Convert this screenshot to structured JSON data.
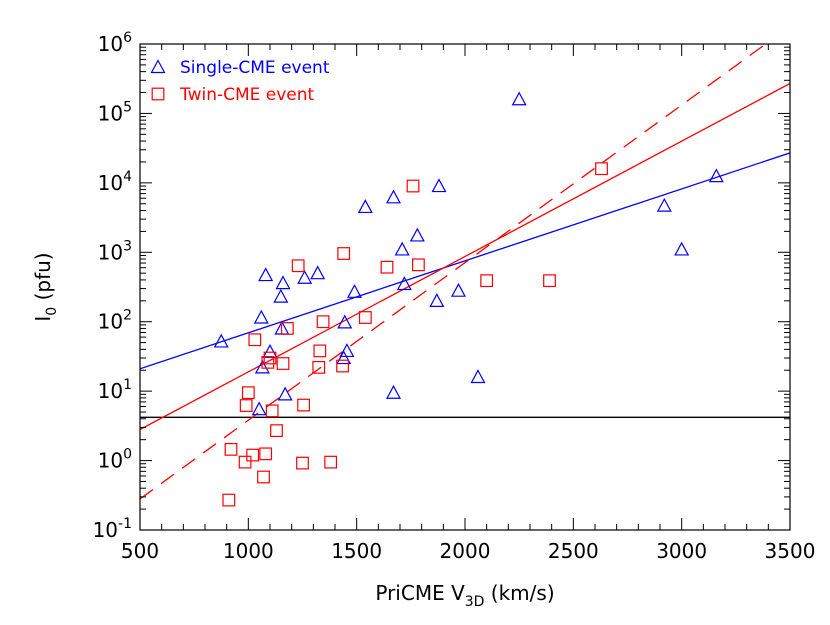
{
  "chart_data": {
    "type": "scatter",
    "xlabel": {
      "main": "PriCME V",
      "sub": "3D",
      "unit": " (km/s)"
    },
    "ylabel": {
      "main": "I",
      "sub": "0",
      "unit": " (pfu)"
    },
    "xlim": [
      500,
      3500
    ],
    "ylim": [
      0.1,
      1000000
    ],
    "yscale": "log",
    "x_ticks": [
      500,
      1000,
      1500,
      2000,
      2500,
      3000,
      3500
    ],
    "y_ticks": [
      {
        "value": 0.1,
        "base": "10",
        "exp": "-1"
      },
      {
        "value": 1,
        "base": "10",
        "exp": "0"
      },
      {
        "value": 10,
        "base": "10",
        "exp": "1"
      },
      {
        "value": 100,
        "base": "10",
        "exp": "2"
      },
      {
        "value": 1000,
        "base": "10",
        "exp": "3"
      },
      {
        "value": 10000,
        "base": "10",
        "exp": "4"
      },
      {
        "value": 100000,
        "base": "10",
        "exp": "5"
      },
      {
        "value": 1000000,
        "base": "10",
        "exp": "6"
      }
    ],
    "grid": false,
    "legend_position": "top-left",
    "series": [
      {
        "name": "Single-CME event",
        "marker": "triangle",
        "color": "#0000ff",
        "points": [
          [
            875,
            52
          ],
          [
            1050,
            5.5
          ],
          [
            1060,
            115
          ],
          [
            1065,
            22
          ],
          [
            1080,
            470
          ],
          [
            1100,
            37
          ],
          [
            1150,
            230
          ],
          [
            1155,
            80
          ],
          [
            1160,
            360
          ],
          [
            1170,
            9
          ],
          [
            1260,
            430
          ],
          [
            1320,
            500
          ],
          [
            1440,
            30
          ],
          [
            1445,
            98
          ],
          [
            1455,
            38
          ],
          [
            1490,
            270
          ],
          [
            1540,
            4500
          ],
          [
            1670,
            9.5
          ],
          [
            1670,
            6200
          ],
          [
            1710,
            1100
          ],
          [
            1720,
            350
          ],
          [
            1780,
            1750
          ],
          [
            1870,
            200
          ],
          [
            1880,
            9000
          ],
          [
            1970,
            280
          ],
          [
            2060,
            16
          ],
          [
            2250,
            160000
          ],
          [
            2920,
            4700
          ],
          [
            3000,
            1100
          ],
          [
            3160,
            12500
          ]
        ]
      },
      {
        "name": "Twin-CME event",
        "marker": "square",
        "color": "#ff0000",
        "points": [
          [
            910,
            0.27
          ],
          [
            920,
            1.45
          ],
          [
            985,
            0.95
          ],
          [
            990,
            6.2
          ],
          [
            1000,
            9.5
          ],
          [
            1020,
            1.2
          ],
          [
            1030,
            55
          ],
          [
            1070,
            0.58
          ],
          [
            1080,
            1.25
          ],
          [
            1090,
            26
          ],
          [
            1100,
            30
          ],
          [
            1110,
            5.2
          ],
          [
            1130,
            2.7
          ],
          [
            1160,
            25
          ],
          [
            1180,
            80
          ],
          [
            1230,
            640
          ],
          [
            1250,
            0.92
          ],
          [
            1255,
            6.3
          ],
          [
            1325,
            22
          ],
          [
            1330,
            38
          ],
          [
            1345,
            100
          ],
          [
            1380,
            0.95
          ],
          [
            1435,
            23
          ],
          [
            1440,
            960
          ],
          [
            1540,
            115
          ],
          [
            1640,
            610
          ],
          [
            1760,
            9000
          ],
          [
            1785,
            660
          ],
          [
            2100,
            390
          ],
          [
            2390,
            390
          ],
          [
            2630,
            16000
          ]
        ]
      }
    ],
    "fit_lines": [
      {
        "color": "#0000ff",
        "dash": "solid",
        "x": [
          500,
          3500
        ],
        "y": [
          21,
          27000
        ]
      },
      {
        "color": "#ff0000",
        "dash": "solid",
        "x": [
          500,
          3500
        ],
        "y": [
          2.8,
          270000
        ]
      },
      {
        "color": "#ff0000",
        "dash": "dashed",
        "x": [
          500,
          3500
        ],
        "y": [
          0.28,
          1800000
        ]
      }
    ],
    "reference_lines": [
      {
        "axis": "y",
        "value": 4.2,
        "color": "#000000"
      }
    ]
  }
}
